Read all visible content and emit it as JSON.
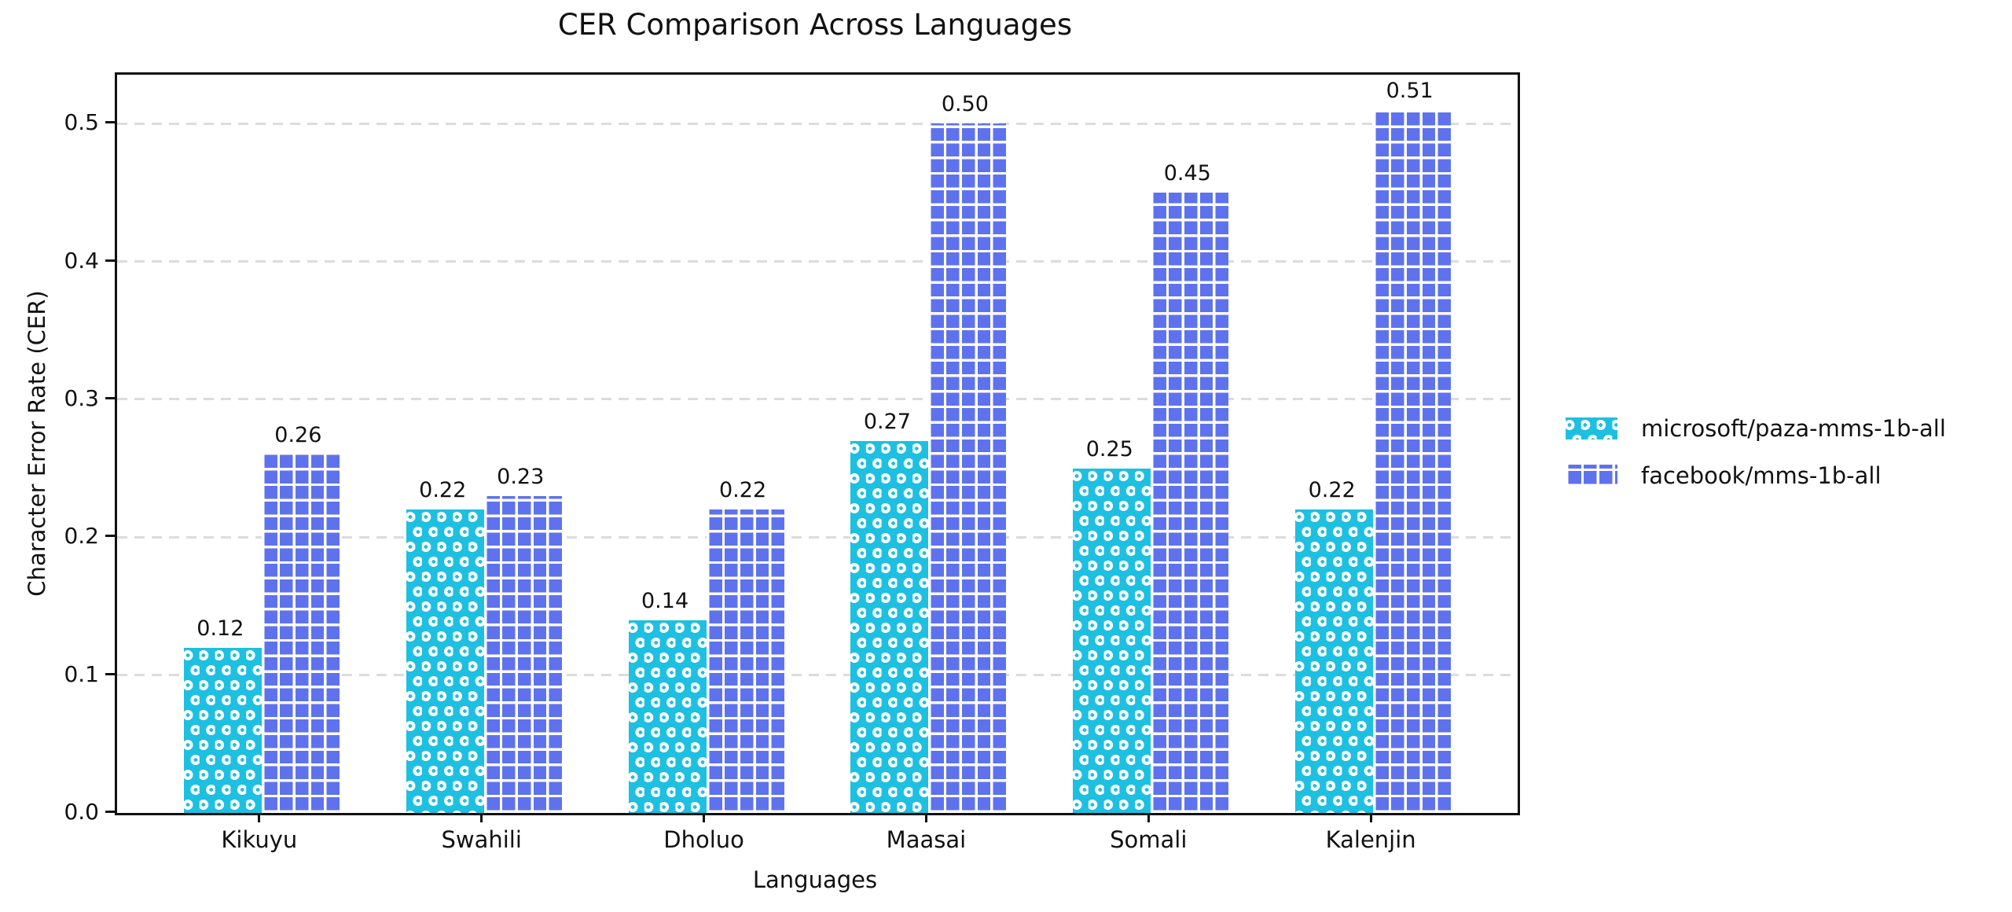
{
  "chart_data": {
    "type": "bar",
    "title": "CER Comparison Across Languages",
    "xlabel": "Languages",
    "ylabel": "Character Error Rate (CER)",
    "categories": [
      "Kikuyu",
      "Swahili",
      "Dholuo",
      "Maasai",
      "Somali",
      "Kalenjin"
    ],
    "series": [
      {
        "name": "microsoft/paza-mms-1b-all",
        "color": "#1DC0E0",
        "hatch": "white-circles",
        "values": [
          0.12,
          0.22,
          0.14,
          0.27,
          0.25,
          0.22
        ],
        "value_labels": [
          "0.12",
          "0.22",
          "0.14",
          "0.27",
          "0.25",
          "0.22"
        ]
      },
      {
        "name": "facebook/mms-1b-all",
        "color": "#5F72EE",
        "hatch": "white-grid",
        "values": [
          0.26,
          0.23,
          0.22,
          0.5,
          0.45,
          0.51
        ],
        "value_labels": [
          "0.26",
          "0.23",
          "0.22",
          "0.50",
          "0.45",
          "0.51"
        ]
      }
    ],
    "y_ticks": [
      0.0,
      0.1,
      0.2,
      0.3,
      0.4,
      0.5
    ],
    "y_tick_labels": [
      "0.0",
      "0.1",
      "0.2",
      "0.3",
      "0.4",
      "0.5"
    ],
    "ylim": [
      0,
      0.5355
    ],
    "grid": {
      "axis": "y",
      "style": "dashed",
      "color": "#dcdcdc"
    },
    "legend": {
      "position": "outside-right",
      "frame": false
    }
  }
}
